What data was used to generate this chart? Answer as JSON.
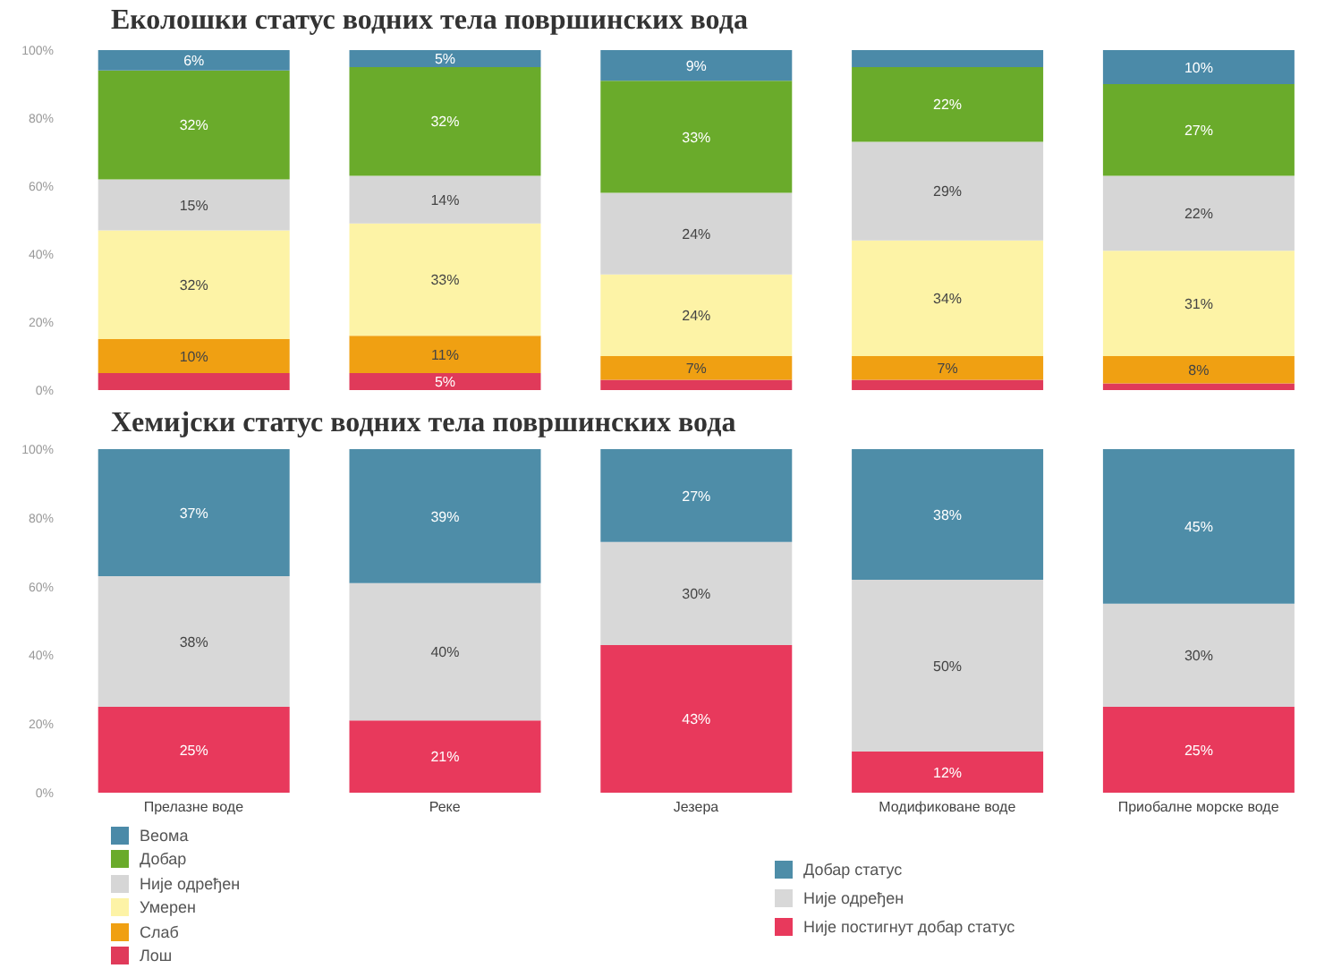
{
  "chart_data": [
    {
      "type": "bar",
      "title": "Еколошки статус водних тела површинских вода",
      "categories": [
        null,
        null,
        null,
        null,
        null
      ],
      "stacked": true,
      "series": [
        {
          "name": "Лош",
          "color": "#e03a5a",
          "values": [
            5,
            5,
            3,
            3,
            2
          ],
          "value_labels": [
            null,
            "5%",
            null,
            null,
            null
          ]
        },
        {
          "name": "Слаб",
          "color": "#f0a012",
          "values": [
            10,
            11,
            7,
            7,
            8
          ],
          "value_labels": [
            "10%",
            "11%",
            "7%",
            "7%",
            "8%"
          ]
        },
        {
          "name": "Умерен",
          "color": "#fdf3a6",
          "values": [
            32,
            33,
            24,
            34,
            31
          ],
          "value_labels": [
            "32%",
            "33%",
            "24%",
            "34%",
            "31%"
          ]
        },
        {
          "name": "Није одређен",
          "color": "#d6d6d6",
          "values": [
            15,
            14,
            24,
            29,
            22
          ],
          "value_labels": [
            "15%",
            "14%",
            "24%",
            "29%",
            "22%"
          ]
        },
        {
          "name": "Добар",
          "color": "#6aab2b",
          "values": [
            32,
            32,
            33,
            22,
            27
          ],
          "value_labels": [
            "32%",
            "32%",
            "33%",
            "22%",
            "27%"
          ]
        },
        {
          "name": "Веома",
          "color": "#4b8aa8",
          "values": [
            6,
            5,
            9,
            5,
            10
          ],
          "value_labels": [
            "6%",
            "5%",
            "9%",
            null,
            "10%"
          ]
        }
      ],
      "ylim": [
        0,
        100
      ],
      "yticks": [
        {
          "value": 0,
          "label": "0%"
        },
        {
          "value": 20,
          "label": "20%"
        },
        {
          "value": 40,
          "label": "40%"
        },
        {
          "value": 60,
          "label": "60%"
        },
        {
          "value": 80,
          "label": "80%"
        },
        {
          "value": 100,
          "label": "100%"
        }
      ],
      "tick_labels": "y",
      "legend": "bottom left"
    },
    {
      "type": "bar",
      "title": "Хемијски статус водних тела површинских вода",
      "categories": [
        "Прелазне воде",
        "Реке",
        "Језера",
        "Модификоване воде",
        "Приобалне морске воде"
      ],
      "stacked": true,
      "series": [
        {
          "name": "Није постигнут добар статус",
          "color": "#e8395c",
          "values": [
            25,
            21,
            43,
            12,
            25
          ],
          "value_labels": [
            "25%",
            "21%",
            "43%",
            "12%",
            "25%"
          ]
        },
        {
          "name": "Није одређен",
          "color": "#d8d8d8",
          "values": [
            38,
            40,
            30,
            50,
            30
          ],
          "value_labels": [
            "38%",
            "40%",
            "30%",
            "50%",
            "30%"
          ]
        },
        {
          "name": "Добар статус",
          "color": "#4e8da8",
          "values": [
            37,
            39,
            27,
            38,
            45
          ],
          "value_labels": [
            "37%",
            "39%",
            "27%",
            "38%",
            "45%"
          ]
        }
      ],
      "ylim": [
        0,
        100
      ],
      "yticks": [
        {
          "value": 0,
          "label": "0%"
        },
        {
          "value": 20,
          "label": "20%"
        },
        {
          "value": 40,
          "label": "40%"
        },
        {
          "value": 60,
          "label": "60%"
        },
        {
          "value": 80,
          "label": "80%"
        },
        {
          "value": 100,
          "label": "100%"
        }
      ],
      "legend": "bottom"
    }
  ]
}
